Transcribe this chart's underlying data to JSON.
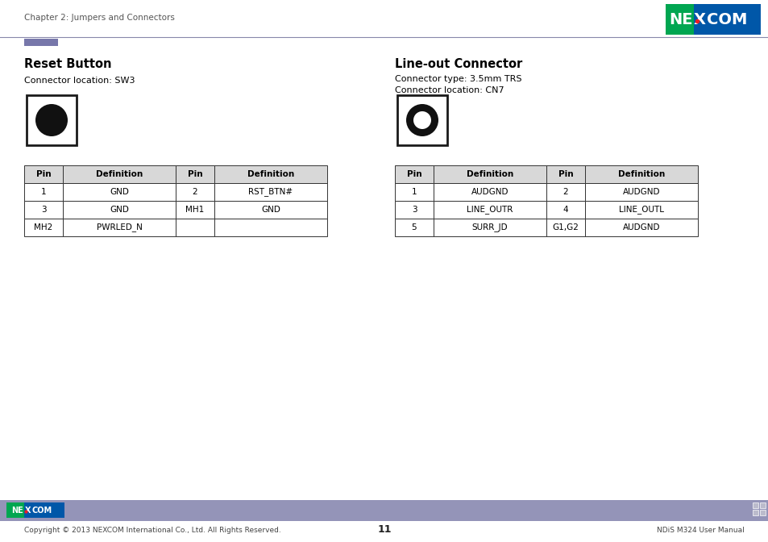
{
  "page_title": "Chapter 2: Jumpers and Connectors",
  "page_num": "11",
  "footer_left": "Copyright © 2013 NEXCOM International Co., Ltd. All Rights Reserved.",
  "footer_right": "NDiS M324 User Manual",
  "header_line_color": "#8888aa",
  "header_accent_color": "#7777aa",
  "footer_bg": "#9494b8",
  "section1_title": "Reset Button",
  "section1_sub": "Connector location: SW3",
  "section2_title": "Line-out Connector",
  "section2_sub1": "Connector type: 3.5mm TRS",
  "section2_sub2": "Connector location: CN7",
  "table1_headers": [
    "Pin",
    "Definition",
    "Pin",
    "Definition"
  ],
  "table1_rows": [
    [
      "1",
      "GND",
      "2",
      "RST_BTN#"
    ],
    [
      "3",
      "GND",
      "MH1",
      "GND"
    ],
    [
      "MH2",
      "PWRLED_N",
      "",
      ""
    ]
  ],
  "table2_headers": [
    "Pin",
    "Definition",
    "Pin",
    "Definition"
  ],
  "table2_rows": [
    [
      "1",
      "AUDGND",
      "2",
      "AUDGND"
    ],
    [
      "3",
      "LINE_OUTR",
      "4",
      "LINE_OUTL"
    ],
    [
      "5",
      "SURR_JD",
      "G1,G2",
      "AUDGND"
    ]
  ],
  "bg_color": "#ffffff",
  "text_color": "#000000",
  "table_header_bg": "#d8d8d8",
  "nexcom_green": "#00a651",
  "nexcom_blue": "#0057a8",
  "nexcom_red": "#ed1c24"
}
